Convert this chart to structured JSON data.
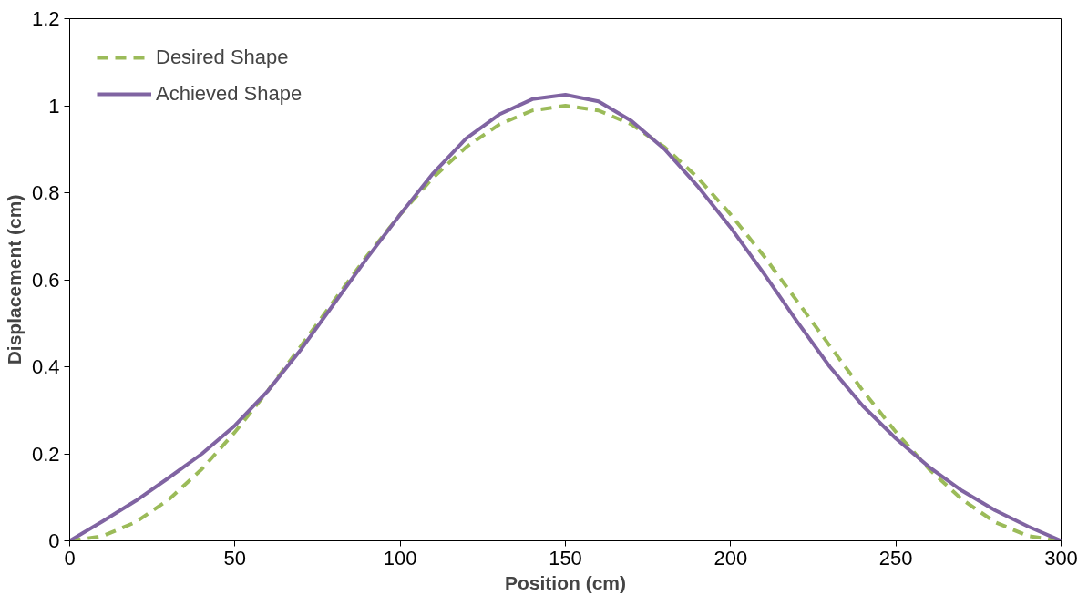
{
  "chart_data": {
    "type": "line",
    "xlabel": "Position (cm)",
    "ylabel": "Displacement (cm)",
    "xlim": [
      0,
      300
    ],
    "ylim": [
      0,
      1.2
    ],
    "xticks": [
      0,
      50,
      100,
      150,
      200,
      250,
      300
    ],
    "yticks": [
      0,
      0.2,
      0.4,
      0.6,
      0.8,
      1,
      1.2
    ],
    "grid": false,
    "legend": "top left",
    "marker": "none",
    "x": [
      0,
      10,
      20,
      30,
      40,
      50,
      60,
      70,
      80,
      90,
      100,
      110,
      120,
      130,
      140,
      150,
      160,
      170,
      180,
      190,
      200,
      210,
      220,
      230,
      240,
      250,
      260,
      270,
      280,
      290,
      300
    ],
    "series": [
      {
        "name": "Desired Shape",
        "color": "#9bbb59",
        "line_style": "dashed",
        "values": [
          0,
          0.011,
          0.043,
          0.095,
          0.165,
          0.25,
          0.345,
          0.448,
          0.552,
          0.655,
          0.75,
          0.835,
          0.905,
          0.957,
          0.989,
          1.0,
          0.989,
          0.957,
          0.905,
          0.835,
          0.75,
          0.655,
          0.552,
          0.448,
          0.345,
          0.25,
          0.165,
          0.095,
          0.043,
          0.011,
          0
        ]
      },
      {
        "name": "Achieved Shape",
        "color": "#8064a2",
        "line_style": "solid",
        "values": [
          0,
          0.045,
          0.092,
          0.145,
          0.2,
          0.265,
          0.345,
          0.44,
          0.545,
          0.65,
          0.75,
          0.845,
          0.925,
          0.98,
          1.015,
          1.025,
          1.01,
          0.965,
          0.9,
          0.815,
          0.72,
          0.615,
          0.505,
          0.4,
          0.31,
          0.235,
          0.17,
          0.115,
          0.07,
          0.033,
          0
        ]
      }
    ]
  }
}
